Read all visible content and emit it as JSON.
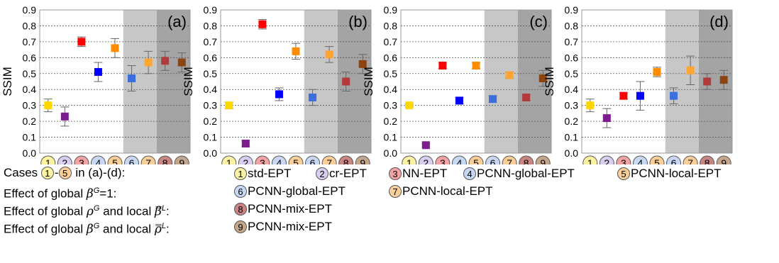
{
  "case_badges": [
    {
      "num": "1",
      "color": "#fbf2a4"
    },
    {
      "num": "2",
      "color": "#d9cdf0"
    },
    {
      "num": "3",
      "color": "#f3a3a3"
    },
    {
      "num": "4",
      "color": "#c6d8f3"
    },
    {
      "num": "5",
      "color": "#f9ce99"
    },
    {
      "num": "6",
      "color": "#c6d8f3"
    },
    {
      "num": "7",
      "color": "#f9ce99"
    },
    {
      "num": "8",
      "color": "#c98484"
    },
    {
      "num": "9",
      "color": "#c4a68b"
    }
  ],
  "colors": {
    "1": "#ffd700",
    "2": "#7b1d8e",
    "3": "#ff0000",
    "4": "#0000ff",
    "5": "#ff8c00",
    "6": "#3b6fe0",
    "7": "#ffa530",
    "8": "#b23a3a",
    "9": "#8b4513",
    "shade_light": "#c7c7c7",
    "shade_dark": "#a4a4a4"
  },
  "legend": {
    "row1_label": "Cases",
    "row1_sep": "-",
    "row1_suffix": "in (a)-(d):",
    "row2_label": "Effect of global",
    "row2_sym": "β",
    "row2_sup": "G",
    "row2_suffix": "=1:",
    "row3_label": "Effect of global",
    "row3_sym1": "ρ",
    "row3_sup1": "G",
    "row3_mid": "and local",
    "row3_sym2": "β̿",
    "row3_sup2": "L",
    "row3_end": ":",
    "row4_label": "Effect of global",
    "row4_sym1": "β",
    "row4_sup1": "G",
    "row4_mid": "and local",
    "row4_sym2": "ρ̿",
    "row4_sup2": "L",
    "row4_end": ":",
    "items": {
      "1": "std-EPT",
      "2": "cr-EPT",
      "3": "NN-EPT",
      "4": "PCNN-global-EPT",
      "5": "PCNN-local-EPT",
      "6": "PCNN-global-EPT",
      "7": "PCNN-local-EPT",
      "8": "PCNN-mix-EPT",
      "9": "PCNN-mix-EPT"
    }
  },
  "chart_data": [
    {
      "type": "scatter",
      "panel_label": "(a)",
      "ylabel": "SSIM",
      "ylim": [
        0,
        0.9
      ],
      "yticks": [
        "0.0",
        "0.1",
        "0.2",
        "0.3",
        "0.4",
        "0.5",
        "0.6",
        "0.7",
        "0.8",
        "0.9"
      ],
      "categories": [
        "1",
        "2",
        "3",
        "4",
        "5",
        "6",
        "7",
        "8",
        "9"
      ],
      "values": [
        0.3,
        0.23,
        0.7,
        0.51,
        0.66,
        0.47,
        0.57,
        0.58,
        0.57
      ],
      "errors": [
        0.04,
        0.06,
        0.03,
        0.06,
        0.06,
        0.08,
        0.07,
        0.06,
        0.06
      ],
      "shaded_regions": [
        {
          "from": "6",
          "to": "7",
          "tone": "light"
        },
        {
          "from": "8",
          "to": "9",
          "tone": "dark"
        }
      ]
    },
    {
      "type": "scatter",
      "panel_label": "(b)",
      "ylabel": "SSIM",
      "ylim": [
        0,
        0.9
      ],
      "yticks": [
        "0.0",
        "0.1",
        "0.2",
        "0.3",
        "0.4",
        "0.5",
        "0.6",
        "0.7",
        "0.8",
        "0.9"
      ],
      "categories": [
        "1",
        "2",
        "3",
        "4",
        "5",
        "6",
        "7",
        "8",
        "9"
      ],
      "values": [
        0.3,
        0.06,
        0.81,
        0.37,
        0.64,
        0.35,
        0.62,
        0.45,
        0.56
      ],
      "errors": [
        0.02,
        0.02,
        0.03,
        0.04,
        0.05,
        0.05,
        0.05,
        0.06,
        0.06
      ],
      "shaded_regions": [
        {
          "from": "6",
          "to": "7",
          "tone": "light"
        },
        {
          "from": "8",
          "to": "9",
          "tone": "dark"
        }
      ]
    },
    {
      "type": "scatter",
      "panel_label": "(c)",
      "ylabel": "SSIM",
      "ylim": [
        0,
        0.9
      ],
      "yticks": [
        "0.0",
        "0.1",
        "0.2",
        "0.3",
        "0.4",
        "0.5",
        "0.6",
        "0.7",
        "0.8",
        "0.9"
      ],
      "categories": [
        "1",
        "2",
        "3",
        "4",
        "5",
        "6",
        "7",
        "8",
        "9"
      ],
      "values": [
        0.3,
        0.05,
        0.55,
        0.33,
        0.55,
        0.34,
        0.49,
        0.35,
        0.47
      ],
      "errors": [
        0.01,
        0.01,
        0.02,
        0.02,
        0.02,
        0.02,
        0.02,
        0.02,
        0.05
      ],
      "shaded_regions": [
        {
          "from": "6",
          "to": "7",
          "tone": "light"
        },
        {
          "from": "8",
          "to": "9",
          "tone": "dark"
        }
      ]
    },
    {
      "type": "scatter",
      "panel_label": "(d)",
      "ylabel": "SSIM",
      "ylim": [
        0,
        0.9
      ],
      "yticks": [
        "0.0",
        "0.1",
        "0.2",
        "0.3",
        "0.4",
        "0.5",
        "0.6",
        "0.7",
        "0.8",
        "0.9"
      ],
      "categories": [
        "1",
        "2",
        "3",
        "4",
        "5",
        "6",
        "7",
        "8",
        "9"
      ],
      "values": [
        0.3,
        0.22,
        0.36,
        0.36,
        0.51,
        0.36,
        0.52,
        0.45,
        0.46
      ],
      "errors": [
        0.04,
        0.06,
        0.02,
        0.09,
        0.03,
        0.05,
        0.09,
        0.05,
        0.06
      ],
      "shaded_regions": [
        {
          "from": "6",
          "to": "7",
          "tone": "light"
        },
        {
          "from": "8",
          "to": "9",
          "tone": "dark"
        }
      ]
    }
  ]
}
